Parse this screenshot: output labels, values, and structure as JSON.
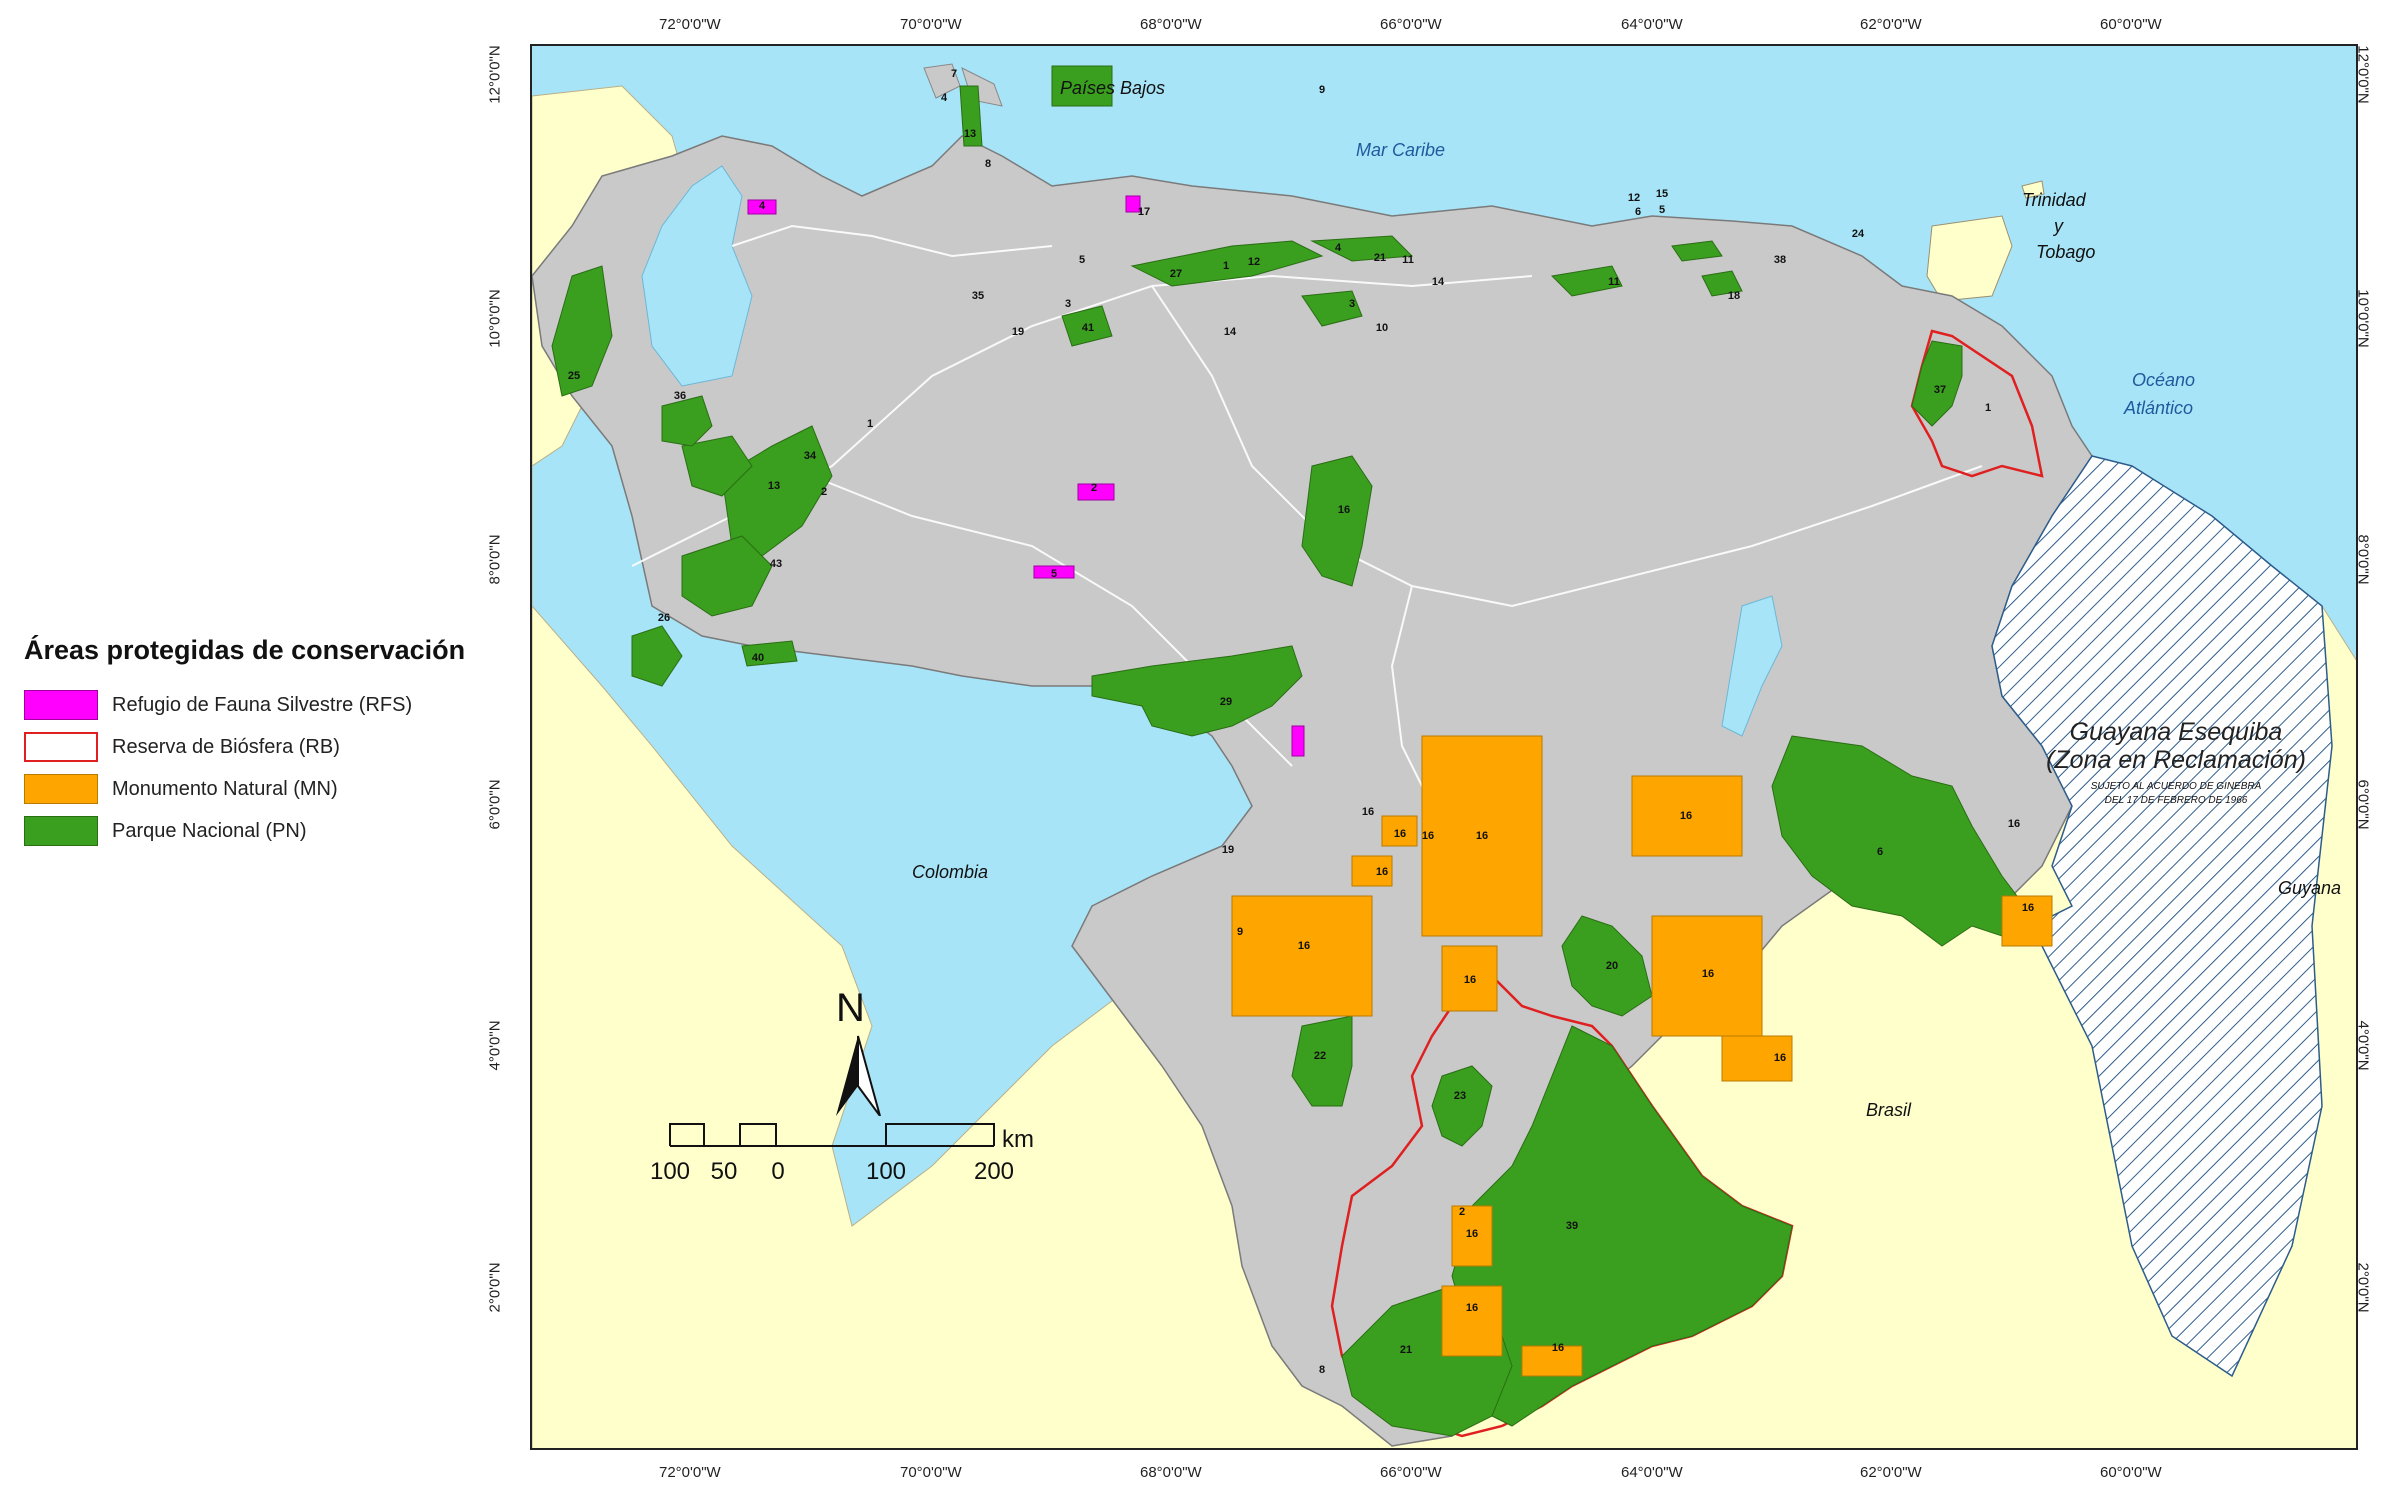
{
  "legend": {
    "title": "Áreas protegidas de conservación",
    "items": [
      {
        "label": "Refugio de Fauna Silvestre (RFS)",
        "color": "#ff00ff",
        "style": "filled"
      },
      {
        "label": "Reserva de Biósfera (RB)",
        "color": "#e02020",
        "style": "outline"
      },
      {
        "label": "Monumento Natural (MN)",
        "color": "#ffa500",
        "style": "filled"
      },
      {
        "label": "Parque Nacional (PN)",
        "color": "#3a9e1e",
        "style": "filled"
      }
    ]
  },
  "colors": {
    "sea": "#a8e4f7",
    "land_other": "#ffffcc",
    "venezuela": "#c9c9c9",
    "claim_hatch": "#2d5d8c",
    "roads": "#ffffff",
    "park": "#3a9e1e",
    "monument": "#ffa500",
    "refuge": "#ff00ff",
    "biosphere": "#e02020"
  },
  "graticule": {
    "longitudes": [
      "72°0'0\"W",
      "70°0'0\"W",
      "68°0'0\"W",
      "66°0'0\"W",
      "64°0'0\"W",
      "62°0'0\"W",
      "60°0'0\"W"
    ],
    "latitudes": [
      "12°0'0\"N",
      "10°0'0\"N",
      "8°0'0\"N",
      "6°0'0\"N",
      "4°0'0\"N",
      "2°0'0\"N"
    ]
  },
  "places": {
    "paises_bajos": "Países Bajos",
    "mar_caribe": "Mar Caribe",
    "trinidad_1": "Trinidad",
    "trinidad_2": "y",
    "trinidad_3": "Tobago",
    "oceano_1": "Océano",
    "oceano_2": "Atlántico",
    "colombia": "Colombia",
    "brasil": "Brasil",
    "guyana": "Guyana",
    "claim_1": "Guayana Esequiba",
    "claim_2": "(Zona en Reclamación)",
    "claim_note_1": "Sujeto al acuerdo de Ginebra",
    "claim_note_2": "del 17 de febrero de 1966"
  },
  "area_labels": [
    "9",
    "7",
    "4",
    "13",
    "8",
    "4",
    "17",
    "5",
    "1",
    "27",
    "12",
    "4",
    "21",
    "14",
    "11",
    "12",
    "15",
    "6",
    "5",
    "3",
    "38",
    "24",
    "11",
    "18",
    "35",
    "19",
    "3",
    "41",
    "14",
    "10",
    "25",
    "36",
    "1",
    "34",
    "2",
    "13",
    "43",
    "37",
    "1",
    "16",
    "2",
    "5",
    "26",
    "40",
    "29",
    "16",
    "16",
    "16",
    "16",
    "16",
    "16",
    "16",
    "19",
    "9",
    "16",
    "16",
    "20",
    "16",
    "16",
    "6",
    "16",
    "22",
    "23",
    "2",
    "16",
    "39",
    "16",
    "21",
    "16",
    "8"
  ],
  "north_arrow": {
    "letter": "N"
  },
  "scale": {
    "ticks": [
      "100",
      "50",
      "0",
      "100",
      "200"
    ],
    "unit": "km"
  }
}
